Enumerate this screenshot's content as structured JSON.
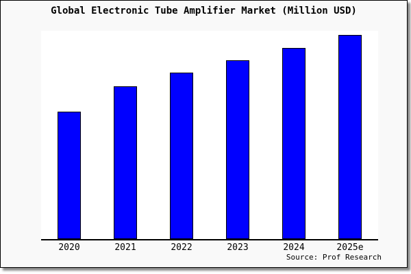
{
  "colors": {
    "bar_fill": "#0000ff",
    "bar_border": "#000000",
    "frame_background": "#f9f9f9",
    "plot_background": "#ffffff",
    "axis_line": "#000000",
    "text": "#000000",
    "frame_border": "#000000",
    "shadow": "#888888"
  },
  "chart_data": {
    "type": "bar",
    "title": "Global Electronic Tube Amplifier Market (Million USD)",
    "categories": [
      "2020",
      "2021",
      "2022",
      "2023",
      "2024",
      "2025e"
    ],
    "values_relative": [
      62.5,
      75,
      81.5,
      87.5,
      93.5,
      100
    ],
    "value_axis_note": "no y-axis, ticks or gridlines shown; values estimated as percent of tallest bar (2025e = 100)",
    "xlabel": "",
    "ylabel": "",
    "grid": false,
    "legend": "none",
    "bar_count": 6,
    "source_note": "Source: Prof Research"
  }
}
